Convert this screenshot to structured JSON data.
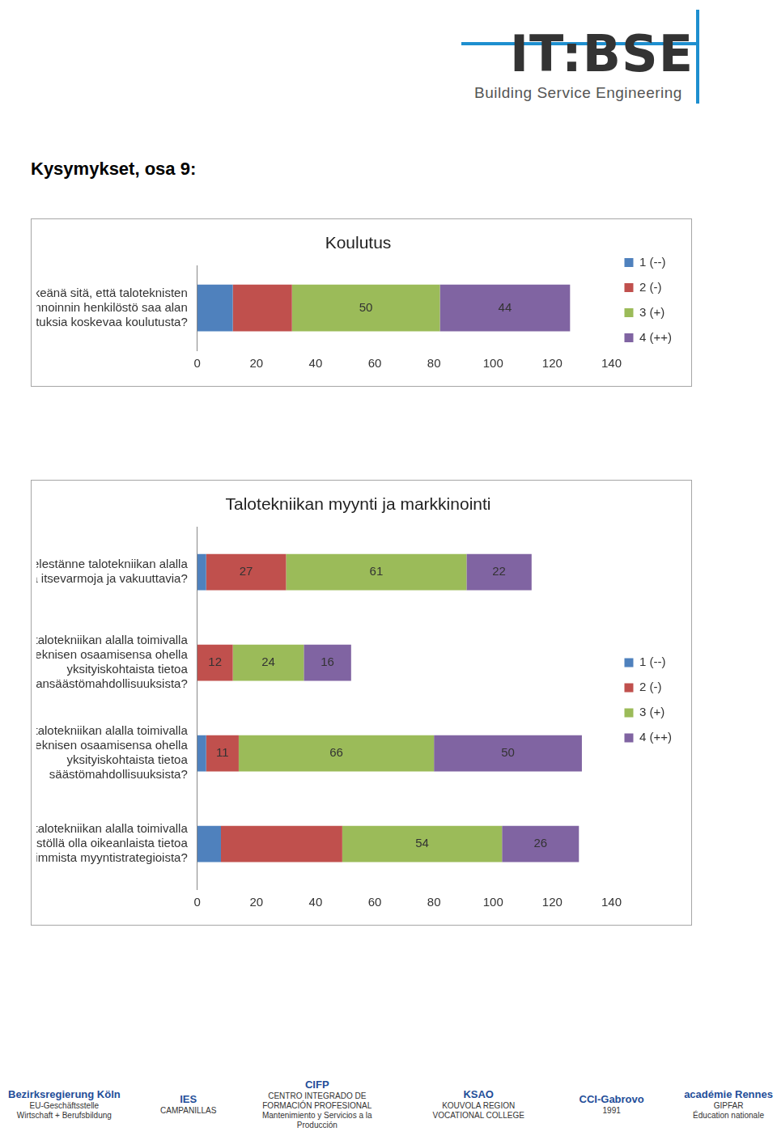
{
  "page": {
    "heading": "Kysymykset, osa 9:",
    "logo": {
      "name": "IT:BSE",
      "subtitle": "Building Service Engineering"
    },
    "partners": [
      [
        "Bezirksregierung Köln",
        "EU-Geschäftsstelle",
        "Wirtschaft + Berufsbildung"
      ],
      [
        "IES",
        "CAMPANILLAS"
      ],
      [
        "CIFP",
        "CENTRO INTEGRADO DE FORMACIÓN PROFESIONAL",
        "Mantenimiento y Servicios a la Producción"
      ],
      [
        "KSAO",
        "KOUVOLA REGION VOCATIONAL COLLEGE"
      ],
      [
        "CCI-Gabrovo",
        "1991"
      ],
      [
        "académie Rennes",
        "GIPFAR",
        "Éducation nationale"
      ]
    ]
  },
  "chart_data": [
    {
      "type": "bar",
      "orientation": "horizontal",
      "stacked": true,
      "title": "Koulutus",
      "categories": [
        "Pidättekö tärkeänä sitä, että taloteknisten laitteiden hallinnoinnin henkilöstö saa alan viimeisimpiä saavutuksia koskevaa koulutusta?"
      ],
      "series": [
        {
          "name": "1 (--)",
          "color": "#4f81bd",
          "values": [
            12
          ],
          "value_labels": [
            null
          ]
        },
        {
          "name": "2 (-)",
          "color": "#c0504d",
          "values": [
            20
          ],
          "value_labels": [
            null
          ]
        },
        {
          "name": "3 (+)",
          "color": "#9bbb59",
          "values": [
            50
          ],
          "value_labels": [
            "50"
          ]
        },
        {
          "name": "4 (++)",
          "color": "#8064a2",
          "values": [
            44
          ],
          "value_labels": [
            "44"
          ]
        }
      ],
      "xlim": [
        0,
        140
      ],
      "xticks": [
        0,
        20,
        40,
        60,
        80,
        100,
        120,
        140
      ],
      "grid": false,
      "legend": "right",
      "data_labels": true
    },
    {
      "type": "bar",
      "orientation": "horizontal",
      "stacked": true,
      "title": "Talotekniikan myynti ja markkinointi",
      "categories": [
        "Pitääkö mielestänne talotekniikan alalla toimivien olla itsevarmoja ja vakuuttavia?",
        "Pitäisikö talotekniikan alalla toimivalla henkilöstöllä olla teknisen osaamisensa ohella yksityiskohtaista tietoa energiansäästömahdollisuuksista?",
        "Pitäisikö talotekniikan alalla toimivalla henkilöstöllä olla teknisen osaamisensa ohella yksityiskohtaista tietoa säästömahdollisuuksista?",
        "Pitäisikö talotekniikan alalla toimivalla henkilöstöllä olla oikeanlaista tietoa uusimmista myyntistrategioista?"
      ],
      "series": [
        {
          "name": "1 (--)",
          "color": "#4f81bd",
          "values": [
            3,
            0,
            3,
            8
          ],
          "value_labels": [
            null,
            null,
            null,
            null
          ]
        },
        {
          "name": "2 (-)",
          "color": "#c0504d",
          "values": [
            27,
            12,
            11,
            41
          ],
          "value_labels": [
            "27",
            "12",
            "11",
            null
          ]
        },
        {
          "name": "3 (+)",
          "color": "#9bbb59",
          "values": [
            61,
            24,
            66,
            54
          ],
          "value_labels": [
            "61",
            "24",
            "66",
            "54"
          ]
        },
        {
          "name": "4 (++)",
          "color": "#8064a2",
          "values": [
            22,
            16,
            50,
            26
          ],
          "value_labels": [
            "22",
            "16",
            "50",
            "26"
          ]
        }
      ],
      "xlim": [
        0,
        140
      ],
      "xticks": [
        0,
        20,
        40,
        60,
        80,
        100,
        120,
        140
      ],
      "grid": false,
      "legend": "right",
      "data_labels": true
    }
  ]
}
